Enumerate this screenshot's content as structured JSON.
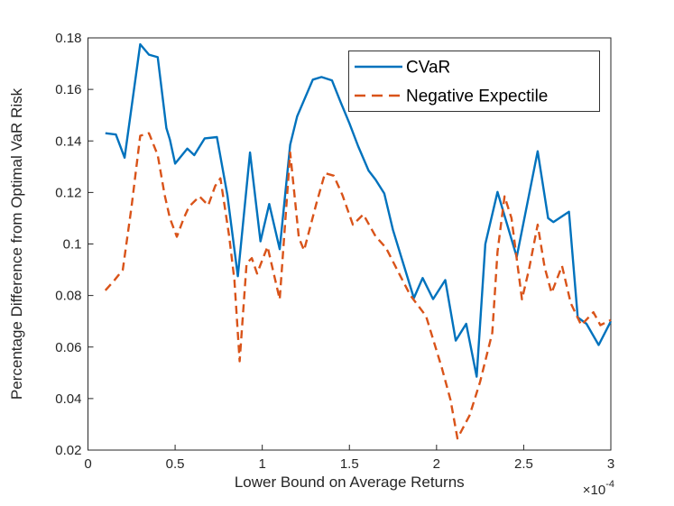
{
  "figure": {
    "background": "#ffffff",
    "axes_color": "#262626",
    "tick_label_color": "#262626"
  },
  "chart_data": {
    "type": "line",
    "title": "",
    "xlabel": "Lower Bound on Average Returns",
    "ylabel": "Percentage Difference from Optimal VaR Risk",
    "x_exponent": {
      "base": "×10",
      "exp": "-4"
    },
    "xlim": [
      0,
      3
    ],
    "ylim": [
      0.02,
      0.18
    ],
    "x_ticks": [
      0,
      0.5,
      1,
      1.5,
      2,
      2.5,
      3
    ],
    "x_tick_labels": [
      "0",
      "0.5",
      "1",
      "1.5",
      "2",
      "2.5",
      "3"
    ],
    "y_ticks": [
      0.02,
      0.04,
      0.06,
      0.08,
      0.1,
      0.12,
      0.14,
      0.16,
      0.18
    ],
    "y_tick_labels": [
      "0.02",
      "0.04",
      "0.06",
      "0.08",
      "0.1",
      "0.12",
      "0.14",
      "0.16",
      "0.18"
    ],
    "grid": false,
    "legend": {
      "position": "north",
      "entries": [
        {
          "label": "CVaR",
          "color": "#0072BD",
          "style": "solid"
        },
        {
          "label": "Negative Expectile",
          "color": "#D95319",
          "style": "dashed"
        }
      ]
    },
    "series": [
      {
        "name": "CVaR",
        "color": "#0072BD",
        "style": "solid",
        "line_width": 2.4,
        "points": [
          [
            0.1,
            0.143
          ],
          [
            0.16,
            0.1425
          ],
          [
            0.21,
            0.1335
          ],
          [
            0.3,
            0.1775
          ],
          [
            0.35,
            0.1735
          ],
          [
            0.4,
            0.1725
          ],
          [
            0.45,
            0.145
          ],
          [
            0.47,
            0.1405
          ],
          [
            0.5,
            0.1312
          ],
          [
            0.57,
            0.137
          ],
          [
            0.61,
            0.1345
          ],
          [
            0.67,
            0.141
          ],
          [
            0.74,
            0.1415
          ],
          [
            0.8,
            0.119
          ],
          [
            0.86,
            0.0875
          ],
          [
            0.93,
            0.1355
          ],
          [
            0.99,
            0.101
          ],
          [
            1.04,
            0.1155
          ],
          [
            1.1,
            0.098
          ],
          [
            1.16,
            0.1385
          ],
          [
            1.2,
            0.1495
          ],
          [
            1.29,
            0.1638
          ],
          [
            1.34,
            0.1648
          ],
          [
            1.4,
            0.1635
          ],
          [
            1.45,
            0.155
          ],
          [
            1.5,
            0.1468
          ],
          [
            1.55,
            0.138
          ],
          [
            1.61,
            0.1285
          ],
          [
            1.65,
            0.125
          ],
          [
            1.7,
            0.1196
          ],
          [
            1.75,
            0.1055
          ],
          [
            1.8,
            0.0944
          ],
          [
            1.87,
            0.079
          ],
          [
            1.92,
            0.0868
          ],
          [
            1.98,
            0.0786
          ],
          [
            2.05,
            0.086
          ],
          [
            2.11,
            0.0625
          ],
          [
            2.17,
            0.069
          ],
          [
            2.23,
            0.0485
          ],
          [
            2.28,
            0.1
          ],
          [
            2.35,
            0.1202
          ],
          [
            2.46,
            0.095
          ],
          [
            2.58,
            0.136
          ],
          [
            2.64,
            0.11
          ],
          [
            2.67,
            0.1085
          ],
          [
            2.76,
            0.1125
          ],
          [
            2.81,
            0.0715
          ],
          [
            2.86,
            0.069
          ],
          [
            2.93,
            0.0608
          ],
          [
            3.0,
            0.07
          ]
        ]
      },
      {
        "name": "Negative Expectile",
        "color": "#D95319",
        "style": "dashed",
        "line_width": 2.4,
        "points": [
          [
            0.1,
            0.082
          ],
          [
            0.15,
            0.0858
          ],
          [
            0.2,
            0.09
          ],
          [
            0.25,
            0.1145
          ],
          [
            0.3,
            0.142
          ],
          [
            0.35,
            0.143
          ],
          [
            0.4,
            0.1345
          ],
          [
            0.44,
            0.119
          ],
          [
            0.47,
            0.11
          ],
          [
            0.51,
            0.1028
          ],
          [
            0.55,
            0.11
          ],
          [
            0.58,
            0.1145
          ],
          [
            0.64,
            0.1185
          ],
          [
            0.69,
            0.115
          ],
          [
            0.73,
            0.1225
          ],
          [
            0.76,
            0.1255
          ],
          [
            0.81,
            0.103
          ],
          [
            0.84,
            0.086
          ],
          [
            0.87,
            0.0545
          ],
          [
            0.91,
            0.0925
          ],
          [
            0.94,
            0.0945
          ],
          [
            0.97,
            0.0885
          ],
          [
            1.03,
            0.099
          ],
          [
            1.1,
            0.0785
          ],
          [
            1.16,
            0.1355
          ],
          [
            1.21,
            0.1025
          ],
          [
            1.24,
            0.0975
          ],
          [
            1.31,
            0.1155
          ],
          [
            1.36,
            0.1275
          ],
          [
            1.41,
            0.1265
          ],
          [
            1.46,
            0.119
          ],
          [
            1.52,
            0.1075
          ],
          [
            1.58,
            0.1115
          ],
          [
            1.65,
            0.103
          ],
          [
            1.71,
            0.0985
          ],
          [
            1.77,
            0.0905
          ],
          [
            1.85,
            0.08
          ],
          [
            1.94,
            0.072
          ],
          [
            2.03,
            0.052
          ],
          [
            2.08,
            0.0395
          ],
          [
            2.12,
            0.0245
          ],
          [
            2.19,
            0.0335
          ],
          [
            2.25,
            0.0465
          ],
          [
            2.32,
            0.0655
          ],
          [
            2.35,
            0.097
          ],
          [
            2.39,
            0.1185
          ],
          [
            2.43,
            0.11
          ],
          [
            2.49,
            0.0785
          ],
          [
            2.53,
            0.09
          ],
          [
            2.58,
            0.1075
          ],
          [
            2.62,
            0.091
          ],
          [
            2.66,
            0.081
          ],
          [
            2.72,
            0.0915
          ],
          [
            2.77,
            0.077
          ],
          [
            2.83,
            0.0685
          ],
          [
            2.9,
            0.0735
          ],
          [
            2.94,
            0.0685
          ],
          [
            3.0,
            0.0705
          ]
        ]
      }
    ]
  }
}
